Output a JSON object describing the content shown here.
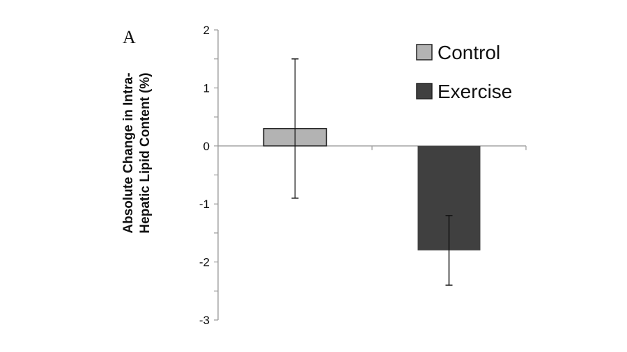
{
  "chart_data": {
    "type": "bar",
    "panel_label": "A",
    "categories": [
      "Control",
      "Exercise"
    ],
    "series": [
      {
        "name": "Control",
        "value": 0.3,
        "error_high": 1.5,
        "error_low": -0.9,
        "color": "#b3b3b3"
      },
      {
        "name": "Exercise",
        "value": -1.8,
        "error_high": -1.2,
        "error_low": -2.4,
        "color": "#404040"
      }
    ],
    "ylabel_lines": [
      "Absolute Change in Intra-",
      "Hepatic Lipid Content (%)"
    ],
    "ylim": [
      -3,
      2
    ],
    "yticks": [
      "2",
      "1",
      "0",
      "-1",
      "-2",
      "-3"
    ],
    "ytick_values": [
      2,
      1,
      0,
      -1,
      -2,
      -3
    ],
    "legend": {
      "position": "top-right",
      "entries": [
        "Control",
        "Exercise"
      ]
    },
    "grid": false
  }
}
